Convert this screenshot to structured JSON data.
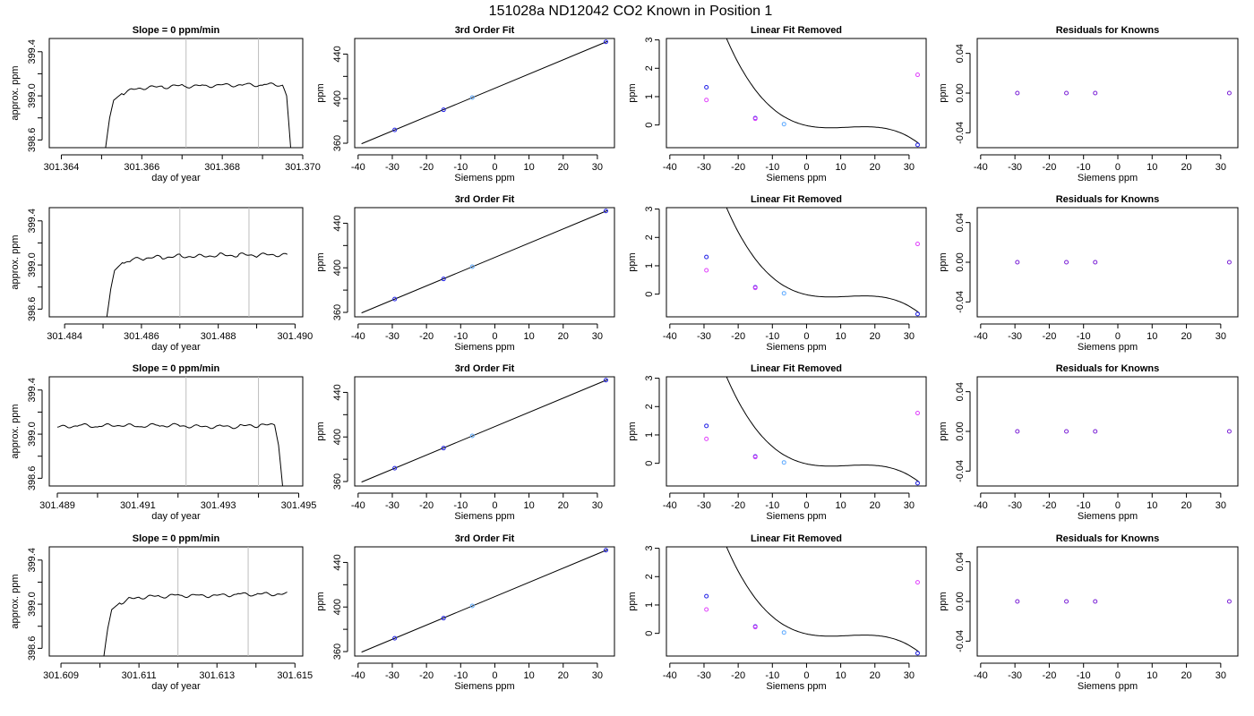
{
  "suptitle": "151028a      ND12042    CO2 Known in Position  1",
  "colors": {
    "axis": "#000000",
    "trace": "#000000",
    "vline": "#bdbdbd",
    "point_blue": "#1f1fe6",
    "point_light": "#5aa8ff",
    "point_mag": "#e040fb",
    "point_purple": "#7a1fd6"
  },
  "rows": [
    {
      "ts": {
        "type": "line",
        "title": "Slope =  0  ppm/min",
        "xlabel": "day of year",
        "ylabel": "approx. ppm",
        "xlim": [
          301.3637,
          301.37
        ],
        "ylim": [
          398.53,
          399.52
        ],
        "xticks": [
          301.364,
          301.366,
          301.368,
          301.37
        ],
        "xtick_labels": [
          "301.364",
          "301.366",
          "301.368",
          "301.370"
        ],
        "yticks": [
          398.6,
          399.0,
          399.4
        ],
        "ytick_labels": [
          "398.6",
          "399.0",
          "399.4"
        ],
        "vlines": [
          301.3671,
          301.3689
        ],
        "x": [
          301.3651,
          301.3652,
          301.3653,
          301.3655,
          301.3657,
          301.366,
          301.3665,
          301.367,
          301.3675,
          301.368,
          301.3685,
          301.369,
          301.3695,
          301.3696,
          301.3697
        ],
        "y": [
          398.53,
          398.8,
          398.96,
          399.02,
          399.05,
          399.07,
          399.08,
          399.09,
          399.09,
          399.1,
          399.1,
          399.1,
          399.1,
          399.0,
          398.53
        ]
      },
      "fit": {
        "type": "line",
        "title": "3rd Order Fit",
        "xlabel": "Siemens ppm",
        "ylabel": "ppm",
        "xlim": [
          -41,
          35
        ],
        "ylim": [
          356,
          454
        ],
        "xticks": [
          -40,
          -30,
          -20,
          -10,
          0,
          10,
          20,
          30
        ],
        "yticks": [
          360,
          400,
          440
        ],
        "line_x": [
          -39,
          33
        ],
        "line_y": [
          359.5,
          451.5
        ],
        "points": [
          {
            "x": -29.3,
            "y": 372,
            "color": "point_blue"
          },
          {
            "x": -15.0,
            "y": 390,
            "color": "point_blue"
          },
          {
            "x": -6.6,
            "y": 401,
            "color": "point_light"
          },
          {
            "x": 32.5,
            "y": 451,
            "color": "point_blue"
          }
        ]
      },
      "lin": {
        "type": "line",
        "title": "Linear Fit Removed",
        "xlabel": "Siemens ppm",
        "ylabel": "ppm",
        "xlim": [
          -41,
          35
        ],
        "ylim": [
          -0.8,
          3.05
        ],
        "xticks": [
          -40,
          -30,
          -20,
          -10,
          0,
          10,
          20,
          30
        ],
        "yticks": [
          0,
          1,
          2,
          3
        ],
        "curve": {
          "a": 0.00015,
          "b": 0.00071,
          "c": 0,
          "d": 0
        },
        "curve_x": [
          -39,
          33
        ],
        "points": [
          {
            "x": -29.3,
            "y": 1.33,
            "color": "point_blue"
          },
          {
            "x": -29.3,
            "y": 0.88,
            "color": "point_mag"
          },
          {
            "x": -15.0,
            "y": 0.24,
            "color": "point_blue"
          },
          {
            "x": -15.0,
            "y": 0.22,
            "color": "point_mag"
          },
          {
            "x": -6.6,
            "y": 0.03,
            "color": "point_light"
          },
          {
            "x": 32.5,
            "y": 1.77,
            "color": "point_mag"
          },
          {
            "x": 32.5,
            "y": -0.7,
            "color": "point_blue"
          }
        ]
      },
      "res": {
        "type": "scatter",
        "title": "Residuals for Knowns",
        "xlabel": "Siemens ppm",
        "ylabel": "ppm",
        "xlim": [
          -41,
          35
        ],
        "ylim": [
          -0.055,
          0.055
        ],
        "xticks": [
          -40,
          -30,
          -20,
          -10,
          0,
          10,
          20,
          30
        ],
        "yticks": [
          -0.04,
          0.0,
          0.04
        ],
        "ytick_labels": [
          "-0.04",
          "0.00",
          "0.04"
        ],
        "points": [
          {
            "x": -29.3,
            "y": 0,
            "color": "point_purple"
          },
          {
            "x": -15.0,
            "y": 0,
            "color": "point_purple"
          },
          {
            "x": -6.6,
            "y": 0,
            "color": "point_purple"
          },
          {
            "x": 32.5,
            "y": 0,
            "color": "point_purple"
          }
        ]
      }
    },
    {
      "ts": {
        "type": "line",
        "title": "",
        "xlabel": "day of year",
        "ylabel": "approx. ppm",
        "xlim": [
          301.4836,
          301.4902
        ],
        "ylim": [
          398.53,
          399.52
        ],
        "xticks": [
          301.484,
          301.486,
          301.488,
          301.49
        ],
        "xtick_labels": [
          "301.484",
          "301.486",
          "301.488",
          "301.490"
        ],
        "yticks": [
          398.6,
          399.0,
          399.4
        ],
        "ytick_labels": [
          "398.6",
          "399.0",
          "399.4"
        ],
        "vlines": [
          301.487,
          301.4888
        ],
        "x": [
          301.4851,
          301.4852,
          301.4853,
          301.4855,
          301.4857,
          301.486,
          301.4865,
          301.487,
          301.4875,
          301.488,
          301.4885,
          301.489,
          301.4895,
          301.4898
        ],
        "y": [
          398.53,
          398.78,
          398.95,
          399.02,
          399.04,
          399.06,
          399.07,
          399.08,
          399.08,
          399.09,
          399.09,
          399.09,
          399.09,
          399.09
        ]
      },
      "fit": {
        "type": "line",
        "title": "3rd Order Fit",
        "xlabel": "Siemens ppm",
        "ylabel": "ppm",
        "xlim": [
          -41,
          35
        ],
        "ylim": [
          356,
          454
        ],
        "xticks": [
          -40,
          -30,
          -20,
          -10,
          0,
          10,
          20,
          30
        ],
        "yticks": [
          360,
          400,
          440
        ],
        "line_x": [
          -39,
          33
        ],
        "line_y": [
          359.5,
          451.5
        ],
        "points": [
          {
            "x": -29.3,
            "y": 372,
            "color": "point_blue"
          },
          {
            "x": -15.0,
            "y": 390,
            "color": "point_blue"
          },
          {
            "x": -6.6,
            "y": 401,
            "color": "point_light"
          },
          {
            "x": 32.5,
            "y": 451,
            "color": "point_blue"
          }
        ]
      },
      "lin": {
        "type": "line",
        "title": "Linear Fit Removed",
        "xlabel": "Siemens ppm",
        "ylabel": "ppm",
        "xlim": [
          -41,
          35
        ],
        "ylim": [
          -0.8,
          3.05
        ],
        "xticks": [
          -40,
          -30,
          -20,
          -10,
          0,
          10,
          20,
          30
        ],
        "yticks": [
          0,
          1,
          2,
          3
        ],
        "curve": {
          "a": 0.00015,
          "b": 0.00071,
          "c": 0,
          "d": 0
        },
        "curve_x": [
          -39,
          33
        ],
        "points": [
          {
            "x": -29.3,
            "y": 1.31,
            "color": "point_blue"
          },
          {
            "x": -29.3,
            "y": 0.84,
            "color": "point_mag"
          },
          {
            "x": -15.0,
            "y": 0.24,
            "color": "point_blue"
          },
          {
            "x": -15.0,
            "y": 0.22,
            "color": "point_mag"
          },
          {
            "x": -6.6,
            "y": 0.03,
            "color": "point_light"
          },
          {
            "x": 32.5,
            "y": 1.77,
            "color": "point_mag"
          },
          {
            "x": 32.5,
            "y": -0.7,
            "color": "point_blue"
          }
        ]
      },
      "res": {
        "type": "scatter",
        "title": "Residuals for Knowns",
        "xlabel": "Siemens ppm",
        "ylabel": "ppm",
        "xlim": [
          -41,
          35
        ],
        "ylim": [
          -0.055,
          0.055
        ],
        "xticks": [
          -40,
          -30,
          -20,
          -10,
          0,
          10,
          20,
          30
        ],
        "yticks": [
          -0.04,
          0.0,
          0.04
        ],
        "ytick_labels": [
          "-0.04",
          "0.00",
          "0.04"
        ],
        "points": [
          {
            "x": -29.3,
            "y": 0,
            "color": "point_purple"
          },
          {
            "x": -15.0,
            "y": 0,
            "color": "point_purple"
          },
          {
            "x": -6.6,
            "y": 0,
            "color": "point_purple"
          },
          {
            "x": 32.5,
            "y": 0,
            "color": "point_purple"
          }
        ]
      }
    },
    {
      "ts": {
        "type": "line",
        "title": "Slope =  0  ppm/min",
        "xlabel": "day of year",
        "ylabel": "approx. ppm",
        "xlim": [
          301.4888,
          301.4951
        ],
        "ylim": [
          398.53,
          399.52
        ],
        "xticks": [
          301.489,
          301.491,
          301.493,
          301.495
        ],
        "xtick_labels": [
          "301.489",
          "301.491",
          "301.493",
          "301.495"
        ],
        "yticks": [
          398.6,
          399.0,
          399.4
        ],
        "ytick_labels": [
          "398.6",
          "399.0",
          "399.4"
        ],
        "vlines": [
          301.4922,
          301.494
        ],
        "x": [
          301.489,
          301.4895,
          301.49,
          301.4905,
          301.491,
          301.4915,
          301.492,
          301.4925,
          301.493,
          301.4935,
          301.494,
          301.4944,
          301.4945,
          301.4946
        ],
        "y": [
          399.06,
          399.08,
          399.07,
          399.08,
          399.07,
          399.08,
          399.08,
          399.07,
          399.07,
          399.07,
          399.08,
          399.08,
          398.9,
          398.53
        ]
      },
      "fit": {
        "type": "line",
        "title": "3rd Order Fit",
        "xlabel": "Siemens ppm",
        "ylabel": "ppm",
        "xlim": [
          -41,
          35
        ],
        "ylim": [
          356,
          454
        ],
        "xticks": [
          -40,
          -30,
          -20,
          -10,
          0,
          10,
          20,
          30
        ],
        "yticks": [
          360,
          400,
          440
        ],
        "line_x": [
          -39,
          33
        ],
        "line_y": [
          359.5,
          451.5
        ],
        "points": [
          {
            "x": -29.3,
            "y": 372,
            "color": "point_blue"
          },
          {
            "x": -15.0,
            "y": 390,
            "color": "point_blue"
          },
          {
            "x": -6.6,
            "y": 401,
            "color": "point_light"
          },
          {
            "x": 32.5,
            "y": 451,
            "color": "point_blue"
          }
        ]
      },
      "lin": {
        "type": "line",
        "title": "Linear Fit Removed",
        "xlabel": "Siemens ppm",
        "ylabel": "ppm",
        "xlim": [
          -41,
          35
        ],
        "ylim": [
          -0.8,
          3.05
        ],
        "xticks": [
          -40,
          -30,
          -20,
          -10,
          0,
          10,
          20,
          30
        ],
        "yticks": [
          0,
          1,
          2,
          3
        ],
        "curve": {
          "a": 0.00015,
          "b": 0.00071,
          "c": 0,
          "d": 0
        },
        "curve_x": [
          -39,
          33
        ],
        "points": [
          {
            "x": -29.3,
            "y": 1.32,
            "color": "point_blue"
          },
          {
            "x": -29.3,
            "y": 0.86,
            "color": "point_mag"
          },
          {
            "x": -15.0,
            "y": 0.24,
            "color": "point_blue"
          },
          {
            "x": -15.0,
            "y": 0.22,
            "color": "point_mag"
          },
          {
            "x": -6.6,
            "y": 0.03,
            "color": "point_light"
          },
          {
            "x": 32.5,
            "y": 1.77,
            "color": "point_mag"
          },
          {
            "x": 32.5,
            "y": -0.7,
            "color": "point_blue"
          }
        ]
      },
      "res": {
        "type": "scatter",
        "title": "Residuals for Knowns",
        "xlabel": "Siemens ppm",
        "ylabel": "ppm",
        "xlim": [
          -41,
          35
        ],
        "ylim": [
          -0.055,
          0.055
        ],
        "xticks": [
          -40,
          -30,
          -20,
          -10,
          0,
          10,
          20,
          30
        ],
        "yticks": [
          -0.04,
          0.0,
          0.04
        ],
        "ytick_labels": [
          "-0.04",
          "0.00",
          "0.04"
        ],
        "points": [
          {
            "x": -29.3,
            "y": 0,
            "color": "point_purple"
          },
          {
            "x": -15.0,
            "y": 0,
            "color": "point_purple"
          },
          {
            "x": -6.6,
            "y": 0,
            "color": "point_purple"
          },
          {
            "x": 32.5,
            "y": 0,
            "color": "point_purple"
          }
        ]
      }
    },
    {
      "ts": {
        "type": "line",
        "title": "Slope =  0  ppm/min",
        "xlabel": "day of year",
        "ylabel": "approx. ppm",
        "xlim": [
          301.6087,
          301.6152
        ],
        "ylim": [
          398.53,
          399.52
        ],
        "xticks": [
          301.609,
          301.611,
          301.613,
          301.615
        ],
        "xtick_labels": [
          "301.609",
          "301.611",
          "301.613",
          "301.615"
        ],
        "yticks": [
          398.6,
          399.0,
          399.4
        ],
        "ytick_labels": [
          "398.6",
          "399.0",
          "399.4"
        ],
        "vlines": [
          301.612,
          301.6138
        ],
        "x": [
          301.6101,
          301.6102,
          301.6103,
          301.6105,
          301.6107,
          301.611,
          301.6115,
          301.612,
          301.6125,
          301.613,
          301.6135,
          301.614,
          301.6145,
          301.6148
        ],
        "y": [
          398.53,
          398.78,
          398.95,
          399.01,
          399.04,
          399.06,
          399.07,
          399.08,
          399.08,
          399.08,
          399.09,
          399.09,
          399.09,
          399.09
        ]
      },
      "fit": {
        "type": "line",
        "title": "3rd Order Fit",
        "xlabel": "Siemens ppm",
        "ylabel": "ppm",
        "xlim": [
          -41,
          35
        ],
        "ylim": [
          356,
          454
        ],
        "xticks": [
          -40,
          -30,
          -20,
          -10,
          0,
          10,
          20,
          30
        ],
        "yticks": [
          360,
          400,
          440
        ],
        "line_x": [
          -39,
          33
        ],
        "line_y": [
          359.5,
          451.5
        ],
        "points": [
          {
            "x": -29.3,
            "y": 372,
            "color": "point_blue"
          },
          {
            "x": -15.0,
            "y": 390,
            "color": "point_blue"
          },
          {
            "x": -6.6,
            "y": 401,
            "color": "point_light"
          },
          {
            "x": 32.5,
            "y": 451,
            "color": "point_blue"
          }
        ]
      },
      "lin": {
        "type": "line",
        "title": "Linear Fit Removed",
        "xlabel": "Siemens ppm",
        "ylabel": "ppm",
        "xlim": [
          -41,
          35
        ],
        "ylim": [
          -0.8,
          3.05
        ],
        "xticks": [
          -40,
          -30,
          -20,
          -10,
          0,
          10,
          20,
          30
        ],
        "yticks": [
          0,
          1,
          2,
          3
        ],
        "curve": {
          "a": 0.00015,
          "b": 0.00071,
          "c": 0,
          "d": 0
        },
        "curve_x": [
          -39,
          33
        ],
        "points": [
          {
            "x": -29.3,
            "y": 1.31,
            "color": "point_blue"
          },
          {
            "x": -29.3,
            "y": 0.84,
            "color": "point_mag"
          },
          {
            "x": -15.0,
            "y": 0.24,
            "color": "point_blue"
          },
          {
            "x": -15.0,
            "y": 0.22,
            "color": "point_mag"
          },
          {
            "x": -6.6,
            "y": 0.03,
            "color": "point_light"
          },
          {
            "x": 32.5,
            "y": 1.8,
            "color": "point_mag"
          },
          {
            "x": 32.5,
            "y": -0.7,
            "color": "point_blue"
          }
        ]
      },
      "res": {
        "type": "scatter",
        "title": "Residuals for Knowns",
        "xlabel": "Siemens ppm",
        "ylabel": "ppm",
        "xlim": [
          -41,
          35
        ],
        "ylim": [
          -0.055,
          0.055
        ],
        "xticks": [
          -40,
          -30,
          -20,
          -10,
          0,
          10,
          20,
          30
        ],
        "yticks": [
          -0.04,
          0.0,
          0.04
        ],
        "ytick_labels": [
          "-0.04",
          "0.00",
          "0.04"
        ],
        "points": [
          {
            "x": -29.3,
            "y": 0,
            "color": "point_purple"
          },
          {
            "x": -15.0,
            "y": 0,
            "color": "point_purple"
          },
          {
            "x": -6.6,
            "y": 0,
            "color": "point_purple"
          },
          {
            "x": 32.5,
            "y": 0,
            "color": "point_purple"
          }
        ]
      }
    }
  ]
}
